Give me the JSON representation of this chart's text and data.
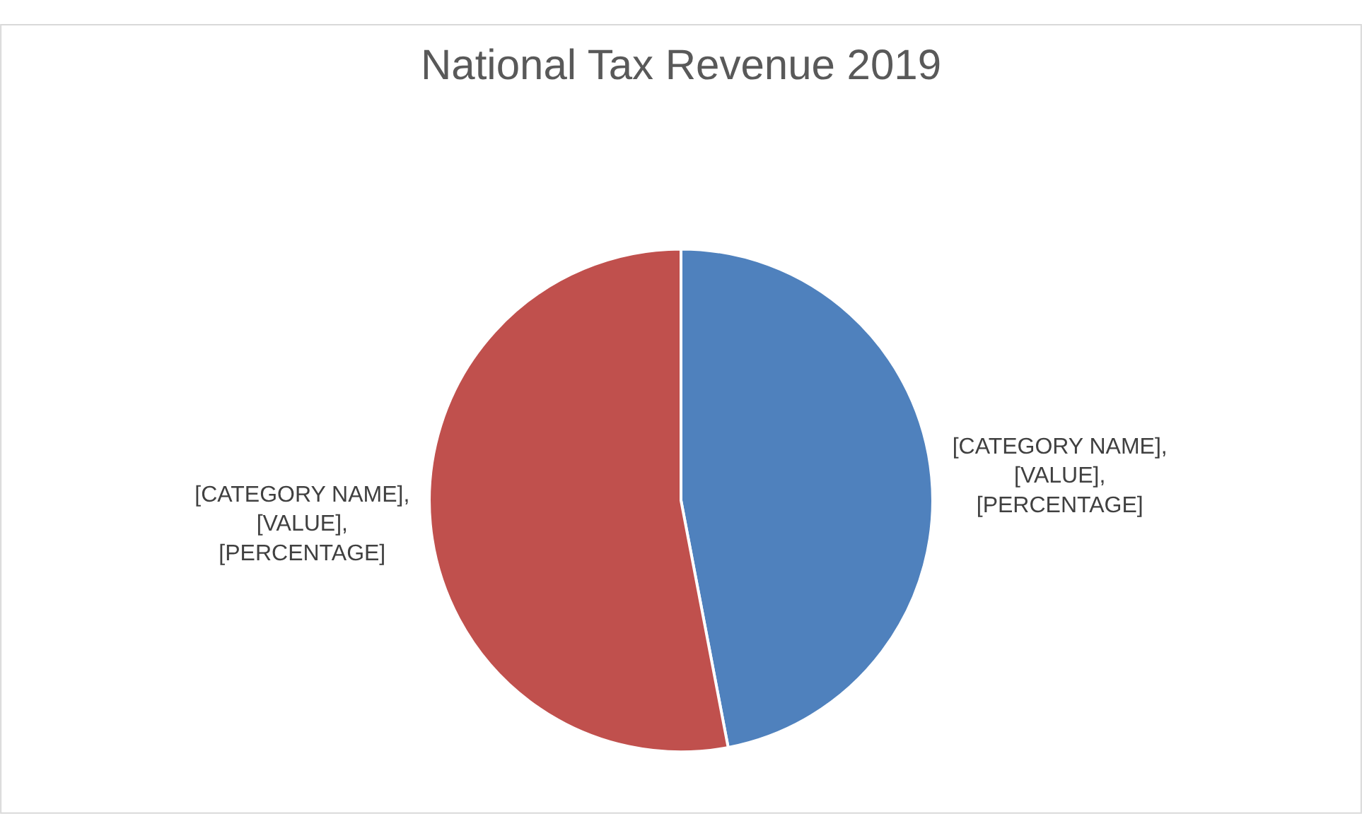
{
  "chart_data": {
    "type": "pie",
    "title": "National Tax Revenue 2019",
    "categories": [
      null,
      null
    ],
    "values": [
      47,
      53
    ],
    "colors": [
      "#4f81bd",
      "#c0504d"
    ],
    "value_labels": [
      "[CATEGORY NAME], [VALUE], [PERCENTAGE]",
      "[CATEGORY NAME], [VALUE], [PERCENTAGE]"
    ],
    "legend": false
  }
}
